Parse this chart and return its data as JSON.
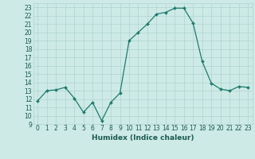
{
  "x": [
    0,
    1,
    2,
    3,
    4,
    5,
    6,
    7,
    8,
    9,
    10,
    11,
    12,
    13,
    14,
    15,
    16,
    17,
    18,
    19,
    20,
    21,
    22,
    23
  ],
  "y": [
    11.8,
    13.0,
    13.1,
    13.4,
    12.1,
    10.4,
    11.6,
    9.4,
    11.6,
    12.7,
    19.0,
    20.0,
    21.0,
    22.2,
    22.4,
    22.9,
    22.9,
    21.1,
    16.5,
    13.9,
    13.2,
    13.0,
    13.5,
    13.4
  ],
  "xlabel": "Humidex (Indice chaleur)",
  "xlim": [
    -0.5,
    23.5
  ],
  "ylim": [
    9,
    23.5
  ],
  "yticks": [
    9,
    10,
    11,
    12,
    13,
    14,
    15,
    16,
    17,
    18,
    19,
    20,
    21,
    22,
    23
  ],
  "xticks": [
    0,
    1,
    2,
    3,
    4,
    5,
    6,
    7,
    8,
    9,
    10,
    11,
    12,
    13,
    14,
    15,
    16,
    17,
    18,
    19,
    20,
    21,
    22,
    23
  ],
  "line_color": "#1e7b6e",
  "marker_color": "#1e7b6e",
  "bg_color": "#cdeae6",
  "grid_color": "#aed4cf",
  "tick_color": "#1a5a50",
  "label_color": "#1a5a50",
  "tick_fontsize": 5.5,
  "xlabel_fontsize": 6.5
}
